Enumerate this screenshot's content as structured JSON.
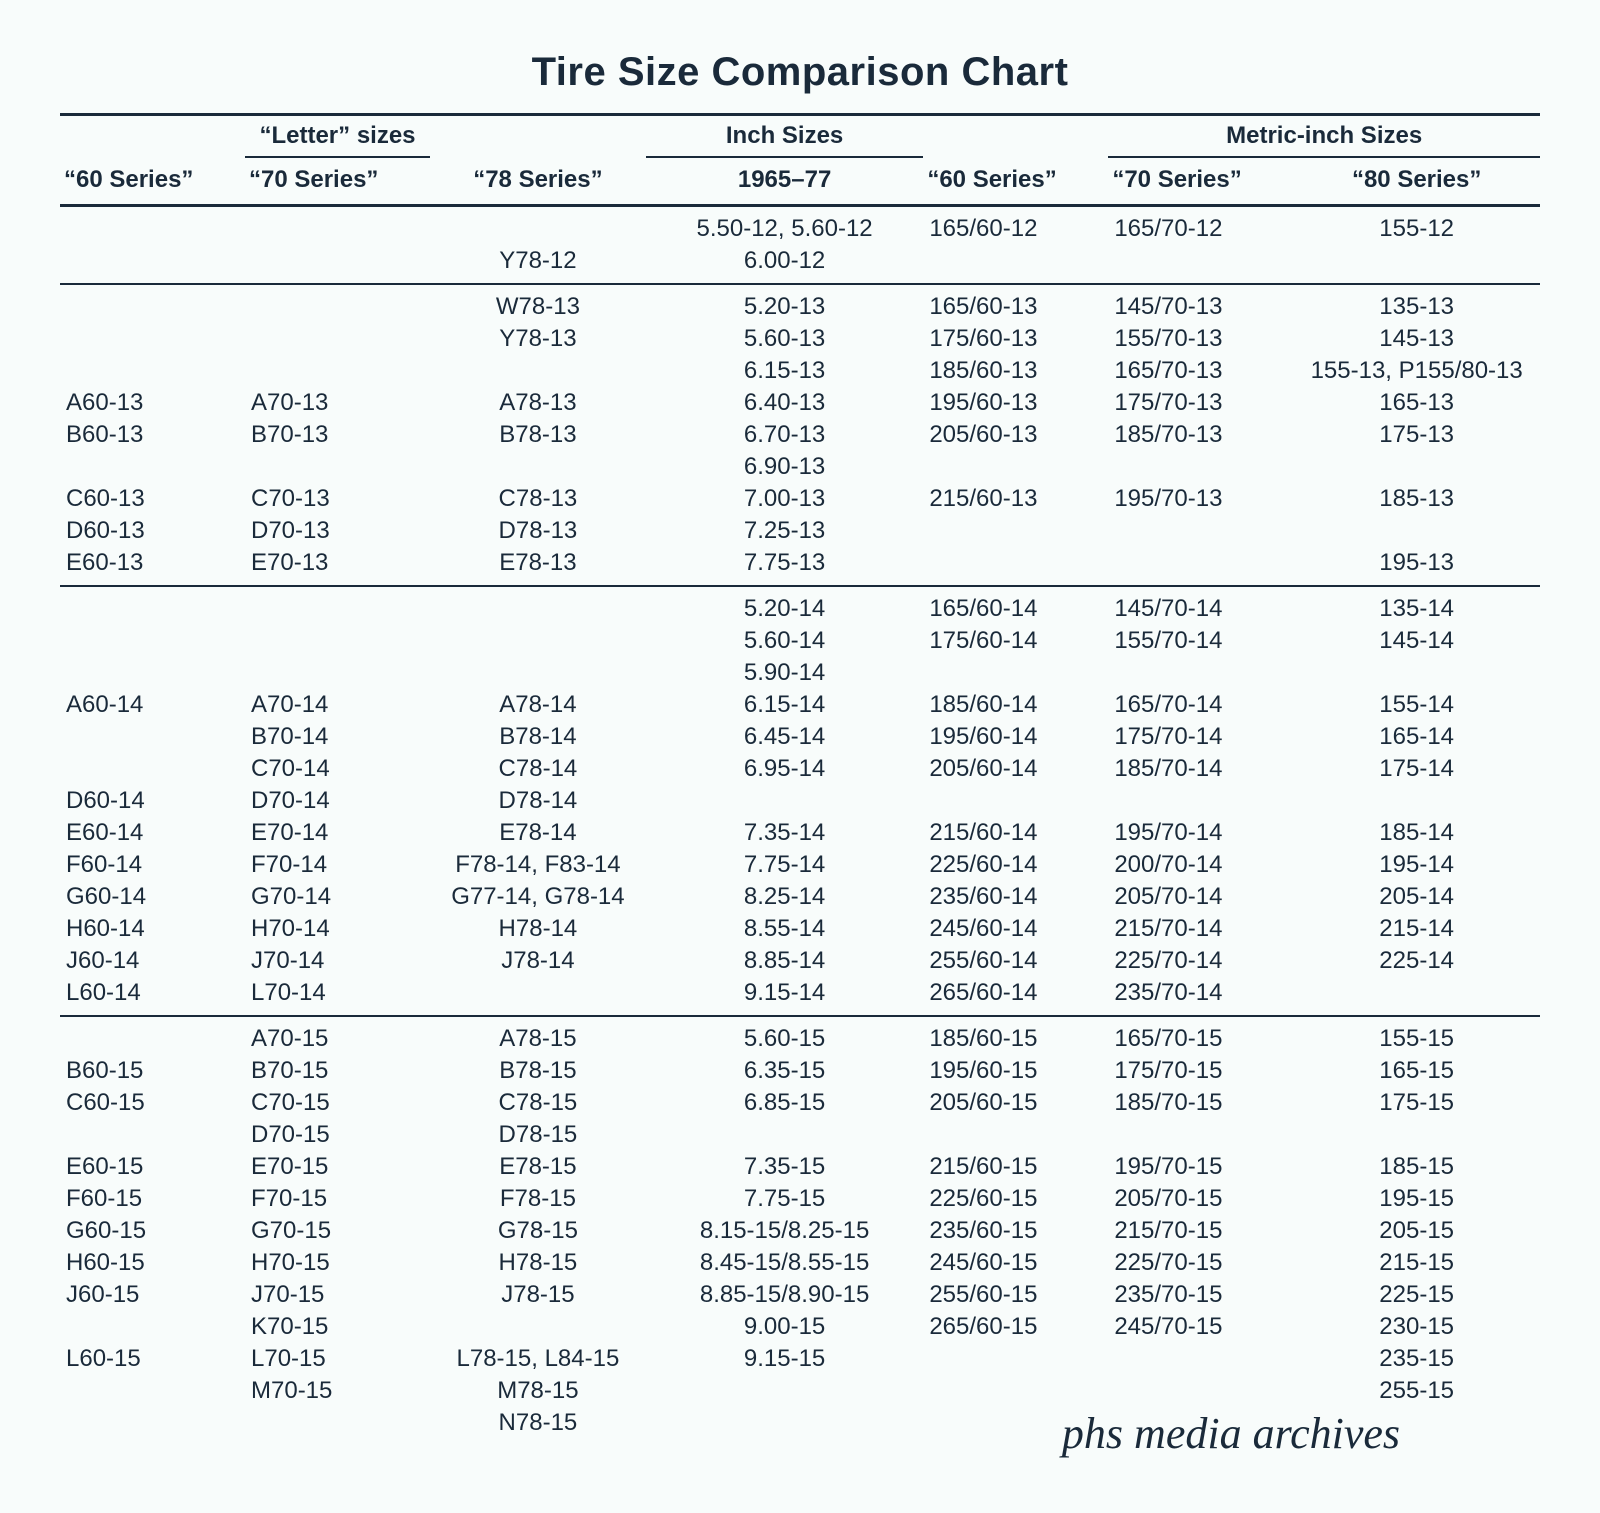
{
  "title": "Tire Size Comparison Chart",
  "watermark": "phs media archives",
  "group_headers": {
    "letter": "“Letter” sizes",
    "inch": "Inch Sizes",
    "metric": "Metric-inch Sizes"
  },
  "sub_headers": {
    "s60": "“60 Series”",
    "s70": "“70 Series”",
    "s78": "“78 Series”",
    "inch": "1965–77",
    "m60": "“60 Series”",
    "m70": "“70 Series”",
    "m80": "“80 Series”"
  },
  "columns": [
    "s60",
    "s70",
    "s78",
    "inch",
    "m60",
    "m70",
    "m80"
  ],
  "align": [
    "l",
    "l",
    "c",
    "c",
    "l",
    "l",
    "c"
  ],
  "sections": [
    [
      [
        "",
        "",
        "",
        "5.50-12, 5.60-12",
        "165/60-12",
        "165/70-12",
        "155-12"
      ],
      [
        "",
        "",
        "Y78-12",
        "6.00-12",
        "",
        "",
        ""
      ]
    ],
    [
      [
        "",
        "",
        "W78-13",
        "5.20-13",
        "165/60-13",
        "145/70-13",
        "135-13"
      ],
      [
        "",
        "",
        "Y78-13",
        "5.60-13",
        "175/60-13",
        "155/70-13",
        "145-13"
      ],
      [
        "",
        "",
        "",
        "6.15-13",
        "185/60-13",
        "165/70-13",
        "155-13, P155/80-13"
      ],
      [
        "A60-13",
        "A70-13",
        "A78-13",
        "6.40-13",
        "195/60-13",
        "175/70-13",
        "165-13"
      ],
      [
        "B60-13",
        "B70-13",
        "B78-13",
        "6.70-13",
        "205/60-13",
        "185/70-13",
        "175-13"
      ],
      [
        "",
        "",
        "",
        "6.90-13",
        "",
        "",
        ""
      ],
      [
        "C60-13",
        "C70-13",
        "C78-13",
        "7.00-13",
        "215/60-13",
        "195/70-13",
        "185-13"
      ],
      [
        "D60-13",
        "D70-13",
        "D78-13",
        "7.25-13",
        "",
        "",
        ""
      ],
      [
        "E60-13",
        "E70-13",
        "E78-13",
        "7.75-13",
        "",
        "",
        "195-13"
      ]
    ],
    [
      [
        "",
        "",
        "",
        "5.20-14",
        "165/60-14",
        "145/70-14",
        "135-14"
      ],
      [
        "",
        "",
        "",
        "5.60-14",
        "175/60-14",
        "155/70-14",
        "145-14"
      ],
      [
        "",
        "",
        "",
        "5.90-14",
        "",
        "",
        ""
      ],
      [
        "A60-14",
        "A70-14",
        "A78-14",
        "6.15-14",
        "185/60-14",
        "165/70-14",
        "155-14"
      ],
      [
        "",
        "B70-14",
        "B78-14",
        "6.45-14",
        "195/60-14",
        "175/70-14",
        "165-14"
      ],
      [
        "",
        "C70-14",
        "C78-14",
        "6.95-14",
        "205/60-14",
        "185/70-14",
        "175-14"
      ],
      [
        "D60-14",
        "D70-14",
        "D78-14",
        "",
        "",
        "",
        ""
      ],
      [
        "E60-14",
        "E70-14",
        "E78-14",
        "7.35-14",
        "215/60-14",
        "195/70-14",
        "185-14"
      ],
      [
        "F60-14",
        "F70-14",
        "F78-14, F83-14",
        "7.75-14",
        "225/60-14",
        "200/70-14",
        "195-14"
      ],
      [
        "G60-14",
        "G70-14",
        "G77-14, G78-14",
        "8.25-14",
        "235/60-14",
        "205/70-14",
        "205-14"
      ],
      [
        "H60-14",
        "H70-14",
        "H78-14",
        "8.55-14",
        "245/60-14",
        "215/70-14",
        "215-14"
      ],
      [
        "J60-14",
        "J70-14",
        "J78-14",
        "8.85-14",
        "255/60-14",
        "225/70-14",
        "225-14"
      ],
      [
        "L60-14",
        "L70-14",
        "",
        "9.15-14",
        "265/60-14",
        "235/70-14",
        ""
      ]
    ],
    [
      [
        "",
        "A70-15",
        "A78-15",
        "5.60-15",
        "185/60-15",
        "165/70-15",
        "155-15"
      ],
      [
        "B60-15",
        "B70-15",
        "B78-15",
        "6.35-15",
        "195/60-15",
        "175/70-15",
        "165-15"
      ],
      [
        "C60-15",
        "C70-15",
        "C78-15",
        "6.85-15",
        "205/60-15",
        "185/70-15",
        "175-15"
      ],
      [
        "",
        "D70-15",
        "D78-15",
        "",
        "",
        "",
        ""
      ],
      [
        "E60-15",
        "E70-15",
        "E78-15",
        "7.35-15",
        "215/60-15",
        "195/70-15",
        "185-15"
      ],
      [
        "F60-15",
        "F70-15",
        "F78-15",
        "7.75-15",
        "225/60-15",
        "205/70-15",
        "195-15"
      ],
      [
        "G60-15",
        "G70-15",
        "G78-15",
        "8.15-15/8.25-15",
        "235/60-15",
        "215/70-15",
        "205-15"
      ],
      [
        "H60-15",
        "H70-15",
        "H78-15",
        "8.45-15/8.55-15",
        "245/60-15",
        "225/70-15",
        "215-15"
      ],
      [
        "J60-15",
        "J70-15",
        "J78-15",
        "8.85-15/8.90-15",
        "255/60-15",
        "235/70-15",
        "225-15"
      ],
      [
        "",
        "K70-15",
        "",
        "9.00-15",
        "265/60-15",
        "245/70-15",
        "230-15"
      ],
      [
        "L60-15",
        "L70-15",
        "L78-15, L84-15",
        "9.15-15",
        "",
        "",
        "235-15"
      ],
      [
        "",
        "M70-15",
        "M78-15",
        "",
        "",
        "",
        "255-15"
      ],
      [
        "",
        "",
        "N78-15",
        "",
        "",
        "",
        ""
      ]
    ]
  ],
  "style": {
    "background_color": "#f8fcfb",
    "text_color": "#1a2a3a",
    "rule_color": "#1a2a3a",
    "title_fontsize": 40,
    "body_fontsize": 24,
    "watermark_fontsize": 44
  }
}
